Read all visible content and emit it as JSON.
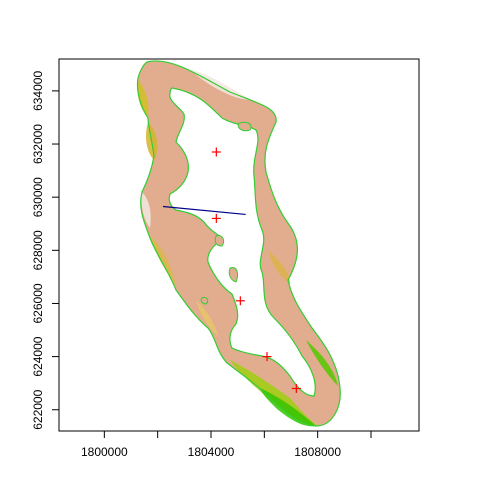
{
  "plot": {
    "type": "raster-map",
    "x_axis": {
      "range": [
        1798300,
        1811800
      ],
      "ticks": [
        1800000,
        1804000,
        1808000
      ],
      "minor_ticks": [
        1802000,
        1806000,
        1810000
      ],
      "tick_labels": [
        "1800000",
        "1804000",
        "1808000"
      ]
    },
    "y_axis": {
      "range": [
        621200,
        635200
      ],
      "ticks": [
        622000,
        624000,
        626000,
        628000,
        630000,
        632000,
        634000
      ],
      "tick_labels": [
        "622000",
        "624000",
        "626000",
        "628000",
        "630000",
        "632000",
        "634000"
      ]
    },
    "colors": {
      "outline": "#33cc33",
      "transect": "#00008b",
      "points": "#ff0000",
      "terrain_low": "#33c400",
      "terrain_mid": "#d9c11a",
      "terrain_high": "#e8b6a0",
      "terrain_peak": "#f4e8e4"
    },
    "transect_line": {
      "from": [
        1802200,
        629650
      ],
      "to": [
        1805300,
        629350
      ]
    },
    "points": [
      {
        "x": 1804200,
        "y": 631700
      },
      {
        "x": 1804200,
        "y": 629200
      },
      {
        "x": 1805100,
        "y": 626100
      },
      {
        "x": 1806100,
        "y": 624000
      },
      {
        "x": 1807200,
        "y": 622800
      }
    ]
  }
}
